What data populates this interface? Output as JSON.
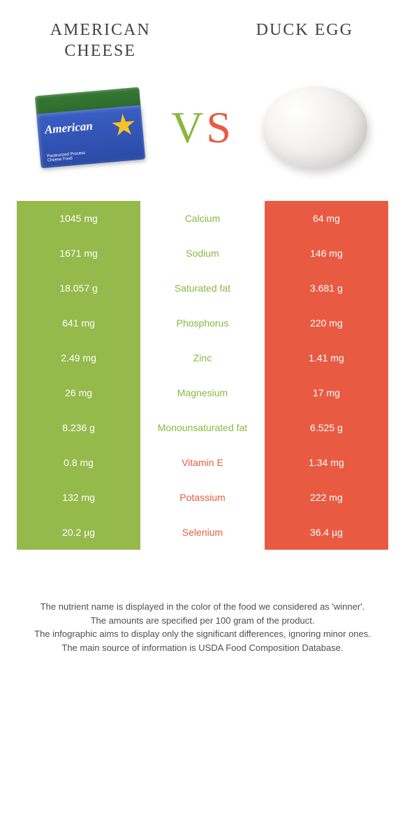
{
  "colors": {
    "leftBg": "#96b94c",
    "rightBg": "#e85b42",
    "leftText": "#8ab73f",
    "rightText": "#e85b42"
  },
  "titles": {
    "left": "AMERICAN CHEESE",
    "right": "DUCK EGG"
  },
  "vs": {
    "v": "V",
    "s": "S"
  },
  "cheeseLabel": "American",
  "rows": [
    {
      "left": "1045 mg",
      "nutrient": "Calcium",
      "right": "64 mg",
      "winner": "left"
    },
    {
      "left": "1671 mg",
      "nutrient": "Sodium",
      "right": "146 mg",
      "winner": "left"
    },
    {
      "left": "18.057 g",
      "nutrient": "Saturated fat",
      "right": "3.681 g",
      "winner": "left"
    },
    {
      "left": "641 mg",
      "nutrient": "Phosphorus",
      "right": "220 mg",
      "winner": "left"
    },
    {
      "left": "2.49 mg",
      "nutrient": "Zinc",
      "right": "1.41 mg",
      "winner": "left"
    },
    {
      "left": "26 mg",
      "nutrient": "Magnesium",
      "right": "17 mg",
      "winner": "left"
    },
    {
      "left": "8.236 g",
      "nutrient": "Monounsaturated fat",
      "right": "6.525 g",
      "winner": "left"
    },
    {
      "left": "0.8 mg",
      "nutrient": "Vitamin E",
      "right": "1.34 mg",
      "winner": "right"
    },
    {
      "left": "132 mg",
      "nutrient": "Potassium",
      "right": "222 mg",
      "winner": "right"
    },
    {
      "left": "20.2 µg",
      "nutrient": "Selenium",
      "right": "36.4 µg",
      "winner": "right"
    }
  ],
  "footnotes": [
    "The nutrient name is displayed in the color of the food we considered as 'winner'.",
    "The amounts are specified per 100 gram of the product.",
    "The infographic aims to display only the significant differences, ignoring minor ones.",
    "The main source of information is USDA Food Composition Database."
  ]
}
